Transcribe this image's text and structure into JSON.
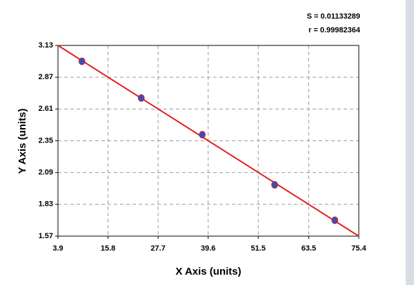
{
  "chart_data": {
    "type": "scatter",
    "annotations": [
      "S = 0.01133289",
      "r = 0.99982364"
    ],
    "x_label": "X Axis (units)",
    "y_label": "Y Axis (units)",
    "x": [
      9.6,
      23.7,
      38.2,
      55.4,
      69.7
    ],
    "values": [
      3.0,
      2.7,
      2.4,
      1.99,
      1.7
    ],
    "color": "#3b4fb5",
    "fit_line": {
      "x": [
        3.9,
        75.4
      ],
      "values": [
        3.13,
        1.57
      ],
      "color": "#e41e1e"
    },
    "xlim": [
      3.9,
      75.4
    ],
    "xticks": [
      3.9,
      15.8,
      27.7,
      39.6,
      51.5,
      63.5,
      75.4
    ],
    "ylim": [
      1.57,
      3.13
    ],
    "yticks": [
      1.57,
      1.83,
      2.09,
      2.35,
      2.61,
      2.87,
      3.13
    ],
    "grid": true
  }
}
